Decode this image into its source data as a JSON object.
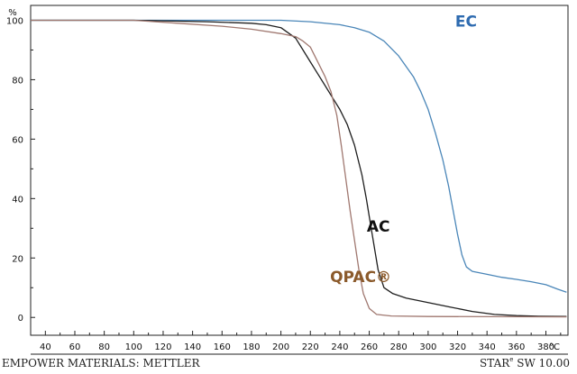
{
  "chart_data": {
    "type": "line",
    "title": "",
    "xlabel": "",
    "ylabel": "",
    "y_unit": "%",
    "x_unit": "°C",
    "xlim": [
      30,
      395
    ],
    "ylim": [
      -6,
      105
    ],
    "x_ticks": [
      40,
      60,
      80,
      100,
      120,
      140,
      160,
      180,
      200,
      220,
      240,
      260,
      280,
      300,
      320,
      340,
      360,
      380
    ],
    "y_ticks": [
      0,
      20,
      40,
      60,
      80,
      100
    ],
    "grid": false,
    "legend": "inline labels",
    "series": [
      {
        "name": "EC",
        "color": "#4a86b8",
        "label_color": "#2e6bb0",
        "label_at": [
          300,
          97
        ],
        "points": [
          [
            30,
            100
          ],
          [
            100,
            100
          ],
          [
            150,
            100
          ],
          [
            200,
            100
          ],
          [
            220,
            99.5
          ],
          [
            240,
            98.5
          ],
          [
            250,
            97.5
          ],
          [
            260,
            96
          ],
          [
            270,
            93
          ],
          [
            280,
            88
          ],
          [
            290,
            81
          ],
          [
            295,
            76
          ],
          [
            300,
            70
          ],
          [
            305,
            62
          ],
          [
            310,
            53
          ],
          [
            314,
            44
          ],
          [
            317,
            36
          ],
          [
            320,
            28
          ],
          [
            323,
            21
          ],
          [
            326,
            17
          ],
          [
            330,
            15.5
          ],
          [
            340,
            14.5
          ],
          [
            350,
            13.5
          ],
          [
            360,
            12.8
          ],
          [
            370,
            12
          ],
          [
            380,
            11
          ],
          [
            388,
            9.5
          ],
          [
            394,
            8.5
          ]
        ]
      },
      {
        "name": "AC",
        "color": "#1e1e1e",
        "label_color": "#111111",
        "label_at": [
          240,
          28
        ],
        "points": [
          [
            30,
            100
          ],
          [
            100,
            100
          ],
          [
            150,
            99.5
          ],
          [
            180,
            99
          ],
          [
            190,
            98.5
          ],
          [
            200,
            97.5
          ],
          [
            210,
            94
          ],
          [
            215,
            90
          ],
          [
            220,
            86
          ],
          [
            225,
            82
          ],
          [
            230,
            78
          ],
          [
            235,
            74
          ],
          [
            240,
            70
          ],
          [
            245,
            65
          ],
          [
            250,
            58
          ],
          [
            255,
            48
          ],
          [
            258,
            40
          ],
          [
            262,
            28
          ],
          [
            266,
            16
          ],
          [
            270,
            10
          ],
          [
            276,
            8
          ],
          [
            285,
            6.5
          ],
          [
            300,
            5
          ],
          [
            315,
            3.5
          ],
          [
            330,
            2
          ],
          [
            345,
            1
          ],
          [
            360,
            0.6
          ],
          [
            375,
            0.4
          ],
          [
            394,
            0.3
          ]
        ]
      },
      {
        "name": "QPAC®",
        "color": "#a07870",
        "label_color": "#8b5a2b",
        "label_at": [
          215,
          11
        ],
        "points": [
          [
            30,
            100
          ],
          [
            100,
            100
          ],
          [
            130,
            99
          ],
          [
            160,
            98
          ],
          [
            180,
            97
          ],
          [
            200,
            95.5
          ],
          [
            210,
            94.5
          ],
          [
            215,
            93
          ],
          [
            220,
            91
          ],
          [
            225,
            86
          ],
          [
            230,
            81
          ],
          [
            234,
            76
          ],
          [
            238,
            68
          ],
          [
            241,
            58
          ],
          [
            244,
            47
          ],
          [
            247,
            36
          ],
          [
            250,
            26
          ],
          [
            253,
            16
          ],
          [
            256,
            8
          ],
          [
            260,
            3
          ],
          [
            265,
            1
          ],
          [
            275,
            0.5
          ],
          [
            300,
            0.3
          ],
          [
            394,
            0.2
          ]
        ]
      }
    ]
  },
  "footer": {
    "left_text": "EMPOWER MATERIALS: METTLER",
    "right_text": "STAR",
    "right_sup": "e",
    "right_version": " SW 10.00"
  }
}
